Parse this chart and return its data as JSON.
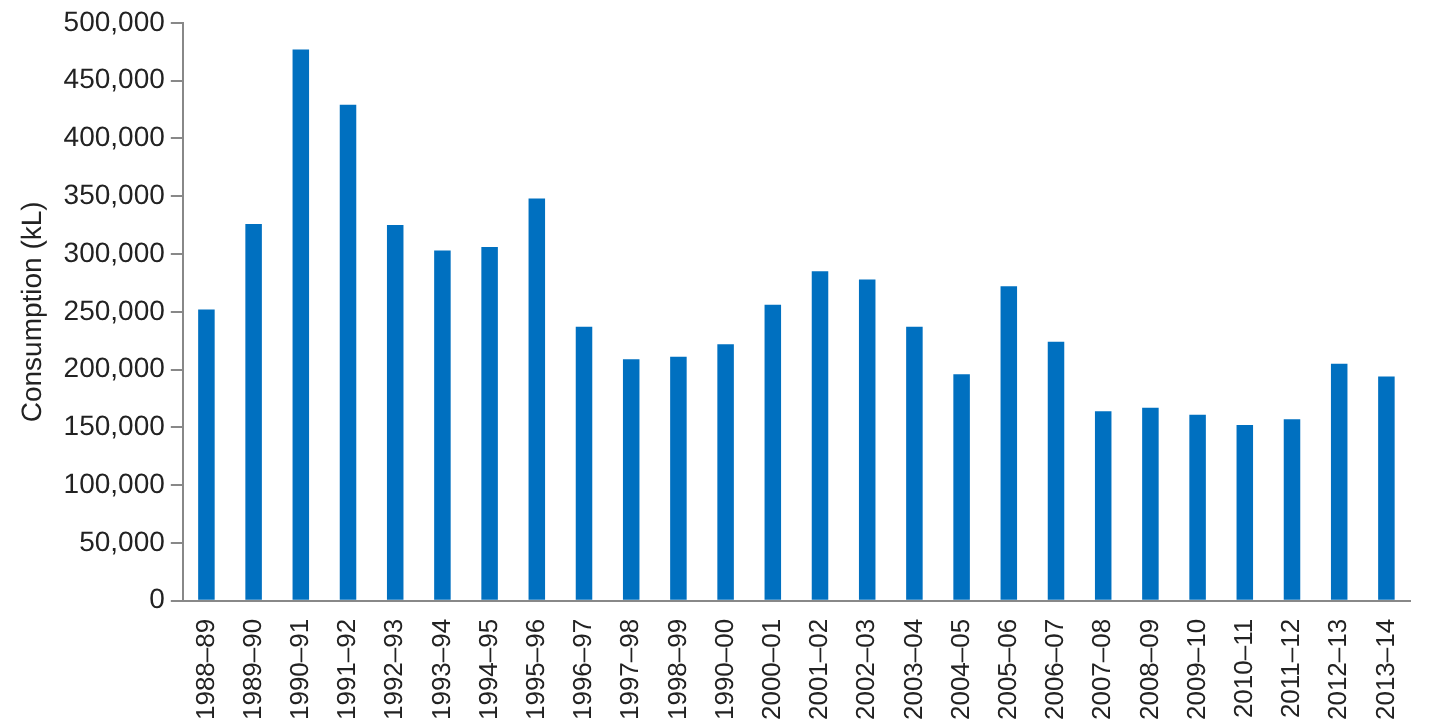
{
  "chart_data": {
    "type": "bar",
    "ylabel": "Consumption (kL)",
    "categories": [
      "1988–89",
      "1989–90",
      "1990–91",
      "1991–92",
      "1992–93",
      "1993–94",
      "1994–95",
      "1995–96",
      "1996–97",
      "1997–98",
      "1998–99",
      "1990–00",
      "2000–01",
      "2001–02",
      "2002–03",
      "2003–04",
      "2004–05",
      "2005–06",
      "2006–07",
      "2007–08",
      "2008–09",
      "2009–10",
      "2010–11",
      "2011–12",
      "2012–13",
      "2013–14"
    ],
    "values": [
      252000,
      326000,
      477000,
      429000,
      325000,
      303000,
      306000,
      348000,
      237000,
      209000,
      211000,
      222000,
      256000,
      285000,
      278000,
      237000,
      196000,
      272000,
      224000,
      164000,
      167000,
      161000,
      152000,
      157000,
      205000,
      194000
    ],
    "color": "#0070c0",
    "ylim": [
      0,
      500000
    ],
    "yticks": [
      0,
      {
        "value": 50000,
        "label": "50,000"
      },
      {
        "value": 100000,
        "label": "100,000"
      },
      {
        "value": 150000,
        "label": "150,000"
      },
      {
        "value": 200000,
        "label": "200,000"
      },
      {
        "value": 250000,
        "label": "250,000"
      },
      {
        "value": 300000,
        "label": "300,000"
      },
      {
        "value": 350000,
        "label": "350,000"
      },
      {
        "value": 400000,
        "label": "400,000"
      },
      {
        "value": 450000,
        "label": "450,000"
      },
      {
        "value": 500000,
        "label": "500,000"
      }
    ],
    "grid": false,
    "legend": false
  }
}
